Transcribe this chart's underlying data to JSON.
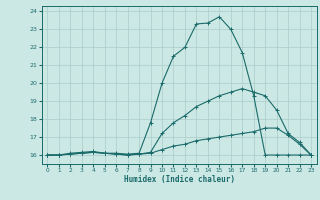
{
  "xlabel": "Humidex (Indice chaleur)",
  "xlim": [
    -0.5,
    23.5
  ],
  "ylim": [
    15.5,
    24.3
  ],
  "xticks": [
    0,
    1,
    2,
    3,
    4,
    5,
    6,
    7,
    8,
    9,
    10,
    11,
    12,
    13,
    14,
    15,
    16,
    17,
    18,
    19,
    20,
    21,
    22,
    23
  ],
  "yticks": [
    16,
    17,
    18,
    19,
    20,
    21,
    22,
    23,
    24
  ],
  "bg_color": "#cce8e4",
  "grid_color": "#aaccca",
  "line_color": "#1a6b6b",
  "line1_y": [
    16,
    16,
    16.1,
    16.15,
    16.2,
    16.1,
    16.1,
    16.05,
    16.1,
    17.8,
    20.0,
    21.5,
    22.0,
    23.3,
    23.35,
    23.7,
    23.0,
    21.7,
    19.3,
    16.0,
    16.0,
    16.0,
    16.0,
    16.0
  ],
  "line2_y": [
    16,
    16,
    16.05,
    16.1,
    16.15,
    16.1,
    16.05,
    16.0,
    16.05,
    16.1,
    16.3,
    16.5,
    16.6,
    16.8,
    16.9,
    17.0,
    17.1,
    17.2,
    17.3,
    17.5,
    17.5,
    17.1,
    16.6,
    16.0
  ],
  "line3_y": [
    16,
    16,
    16.05,
    16.1,
    16.15,
    16.1,
    16.05,
    16.0,
    16.05,
    16.15,
    17.2,
    17.8,
    18.2,
    18.7,
    19.0,
    19.3,
    19.5,
    19.7,
    19.5,
    19.3,
    18.5,
    17.2,
    16.7,
    16.0
  ]
}
